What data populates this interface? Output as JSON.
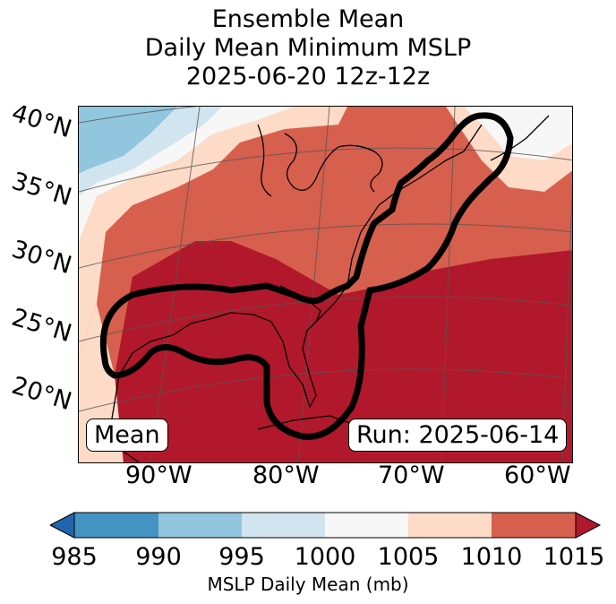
{
  "title": {
    "line1": "Ensemble Mean",
    "line2": "Daily Mean Minimum MSLP",
    "line3": "2025-06-20 12z-12z"
  },
  "map": {
    "lat_labels": [
      "40°N",
      "35°N",
      "30°N",
      "25°N",
      "20°N"
    ],
    "lon_labels": [
      "90°W",
      "80°W",
      "70°W",
      "60°W"
    ],
    "mean_label": "Mean",
    "run_label": "Run: 2025-06-14",
    "field_levels": [
      985,
      990,
      995,
      1000,
      1005,
      1010,
      1015
    ]
  },
  "colorbar": {
    "ticks": [
      "985",
      "990",
      "995",
      "1000",
      "1005",
      "1010",
      "1015"
    ],
    "label": "MSLP Daily Mean (mb)",
    "colors": [
      "#2166ac",
      "#4393c3",
      "#92c5de",
      "#d1e5f0",
      "#f7f7f7",
      "#fddbc7",
      "#d6604d",
      "#b2182b"
    ]
  }
}
